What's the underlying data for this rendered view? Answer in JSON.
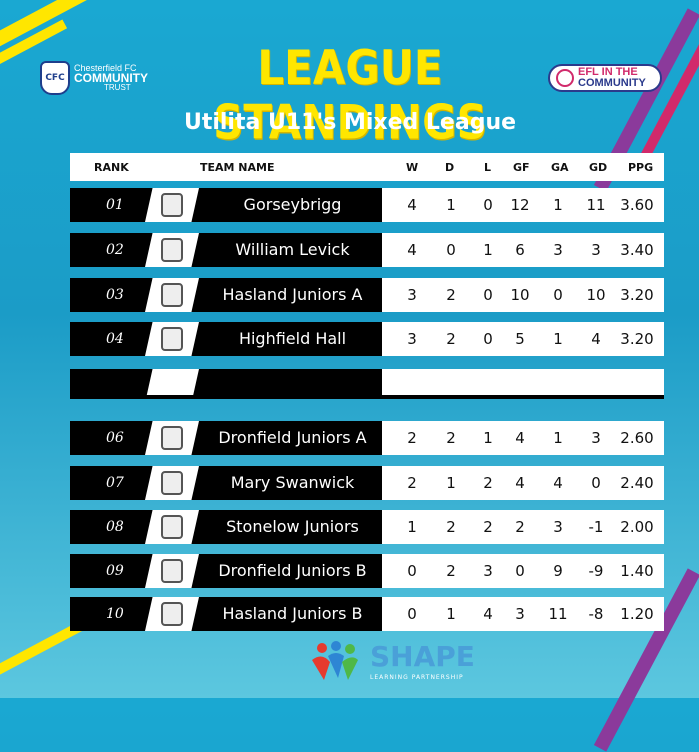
{
  "header": {
    "left_logo_line1": "Chesterfield FC",
    "left_logo_line2": "COMMUNITY",
    "left_logo_line3": "TRUST",
    "left_logo_crest": "CFC",
    "title": "LEAGUE STANDINGS",
    "subtitle": "Utilita U11's Mixed League",
    "right_logo_line1": "EFL IN THE",
    "right_logo_line2": "COMMUNITY"
  },
  "columns": {
    "rank": "RANK",
    "team": "TEAM NAME",
    "w": "W",
    "d": "D",
    "l": "L",
    "gf": "GF",
    "ga": "GA",
    "gd": "GD",
    "ppg": "PPG"
  },
  "rows": [
    {
      "rank": "01",
      "team": "Gorseybrigg",
      "w": "4",
      "d": "1",
      "l": "0",
      "gf": "12",
      "ga": "1",
      "gd": "11",
      "ppg": "3.60",
      "badge_icon": "gorseybrigg-school-badge-icon"
    },
    {
      "rank": "02",
      "team": "William Levick",
      "w": "4",
      "d": "0",
      "l": "1",
      "gf": "6",
      "ga": "3",
      "gd": "3",
      "ppg": "3.40",
      "badge_icon": "william-levick-badge-icon"
    },
    {
      "rank": "03",
      "team": "Hasland Juniors A",
      "w": "3",
      "d": "2",
      "l": "0",
      "gf": "10",
      "ga": "0",
      "gd": "10",
      "ppg": "3.20",
      "badge_icon": "hasland-junior-school-badge-icon"
    },
    {
      "rank": "04",
      "team": "Highfield Hall",
      "w": "3",
      "d": "2",
      "l": "0",
      "gf": "5",
      "ga": "1",
      "gd": "4",
      "ppg": "3.20",
      "badge_icon": "highfield-hall-shield-icon"
    },
    {
      "rank": "06",
      "team": "Dronfield Juniors A",
      "w": "2",
      "d": "2",
      "l": "1",
      "gf": "4",
      "ga": "1",
      "gd": "3",
      "ppg": "2.60",
      "badge_icon": "dronfield-junior-school-badge-icon"
    },
    {
      "rank": "07",
      "team": "Mary Swanwick",
      "w": "2",
      "d": "1",
      "l": "2",
      "gf": "4",
      "ga": "4",
      "gd": "0",
      "ppg": "2.40",
      "badge_icon": "mary-swanwick-badge-icon"
    },
    {
      "rank": "08",
      "team": "Stonelow Juniors",
      "w": "1",
      "d": "2",
      "l": "2",
      "gf": "2",
      "ga": "3",
      "gd": "-1",
      "ppg": "2.00",
      "badge_icon": "stonelow-juniors-badge-icon"
    },
    {
      "rank": "09",
      "team": "Dronfield Juniors B",
      "w": "0",
      "d": "2",
      "l": "3",
      "gf": "0",
      "ga": "9",
      "gd": "-9",
      "ppg": "1.40",
      "badge_icon": "dronfield-junior-school-badge-icon"
    },
    {
      "rank": "10",
      "team": "Hasland Juniors B",
      "w": "0",
      "d": "1",
      "l": "4",
      "gf": "3",
      "ga": "11",
      "gd": "-8",
      "ppg": "1.20",
      "badge_icon": "hasland-junior-school-badge-icon"
    }
  ],
  "footer": {
    "logo_word": "SHAPE",
    "logo_sub": "LEARNING PARTNERSHIP"
  },
  "colors": {
    "title_yellow": "#ffe600",
    "background_blue": "#1aa8d2",
    "row_black": "#000000"
  }
}
